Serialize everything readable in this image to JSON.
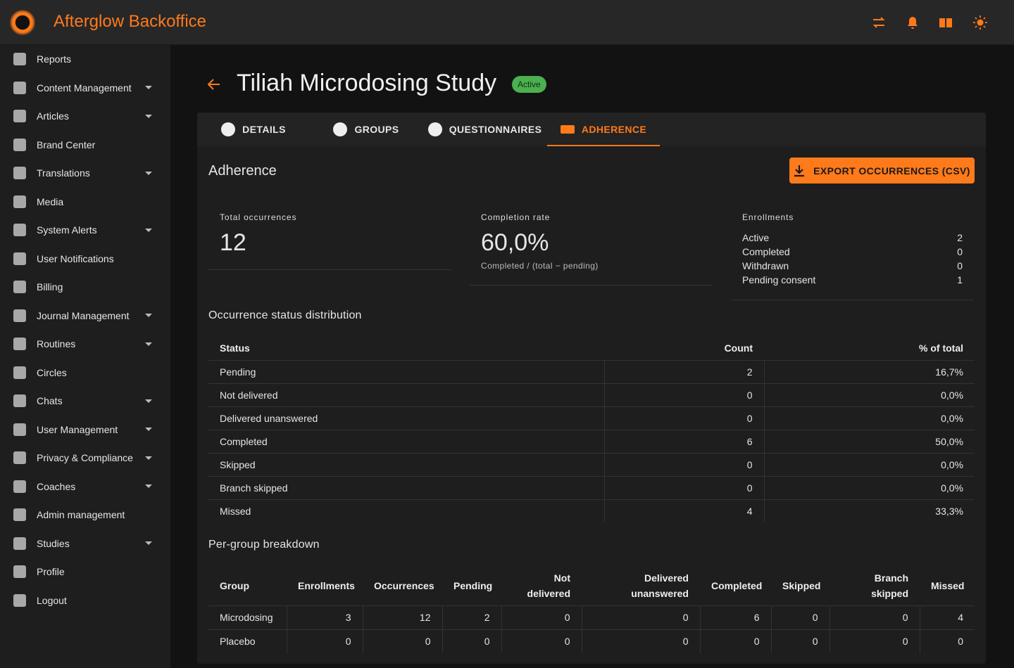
{
  "header": {
    "title": "Afterglow Backoffice"
  },
  "sidebar": {
    "items": [
      {
        "label": "Reports",
        "dropdown": false
      },
      {
        "label": "Content Management",
        "dropdown": true
      },
      {
        "label": "Articles",
        "dropdown": true
      },
      {
        "label": "Brand Center",
        "dropdown": false
      },
      {
        "label": "Translations",
        "dropdown": true
      },
      {
        "label": "Media",
        "dropdown": false
      },
      {
        "label": "System Alerts",
        "dropdown": true
      },
      {
        "label": "User Notifications",
        "dropdown": false
      },
      {
        "label": "Billing",
        "dropdown": false
      },
      {
        "label": "Journal Management",
        "dropdown": true
      },
      {
        "label": "Routines",
        "dropdown": true
      },
      {
        "label": "Circles",
        "dropdown": false
      },
      {
        "label": "Chats",
        "dropdown": true
      },
      {
        "label": "User Management",
        "dropdown": true
      },
      {
        "label": "Privacy & Compliance",
        "dropdown": true
      },
      {
        "label": "Coaches",
        "dropdown": true
      },
      {
        "label": "Admin management",
        "dropdown": false
      },
      {
        "label": "Studies",
        "dropdown": true
      },
      {
        "label": "Profile",
        "dropdown": false
      },
      {
        "label": "Logout",
        "dropdown": false
      }
    ]
  },
  "page": {
    "title": "Tiliah Microdosing Study",
    "status": "Active"
  },
  "tabs": {
    "items": [
      "DETAILS",
      "GROUPS",
      "QUESTIONNAIRES",
      "ADHERENCE"
    ],
    "active": 3
  },
  "section": {
    "title": "Adherence",
    "export_button": "EXPORT OCCURRENCES (CSV)"
  },
  "stats": {
    "total": {
      "label": "Total occurrences",
      "value": 12
    },
    "completion": {
      "label": "Completion rate",
      "value": "60,0%",
      "caption": "Completed / (total − pending)"
    },
    "enrollments": {
      "label": "Enrollments",
      "rows": [
        [
          "Active",
          2
        ],
        [
          "Completed",
          0
        ],
        [
          "Withdrawn",
          0
        ],
        [
          "Pending consent",
          1
        ]
      ]
    }
  },
  "distribution": {
    "title": "Occurrence status distribution",
    "columns": [
      "Status",
      "Count",
      "% of total"
    ],
    "rows": [
      [
        "Pending",
        2,
        "16,7%"
      ],
      [
        "Not delivered",
        0,
        "0,0%"
      ],
      [
        "Delivered unanswered",
        0,
        "0,0%"
      ],
      [
        "Completed",
        6,
        "50,0%"
      ],
      [
        "Skipped",
        0,
        "0,0%"
      ],
      [
        "Branch skipped",
        0,
        "0,0%"
      ],
      [
        "Missed",
        4,
        "33,3%"
      ]
    ]
  },
  "groups": {
    "title": "Per-group breakdown",
    "columns": [
      "Group",
      "Enrollments",
      "Occurrences",
      "Pending",
      "Not delivered",
      "Delivered unanswered",
      "Completed",
      "Skipped",
      "Branch skipped",
      "Missed"
    ],
    "rows": [
      [
        "Microdosing",
        3,
        12,
        2,
        0,
        0,
        6,
        0,
        0,
        4
      ],
      [
        "Placebo",
        0,
        0,
        0,
        0,
        0,
        0,
        0,
        0,
        0
      ]
    ]
  }
}
